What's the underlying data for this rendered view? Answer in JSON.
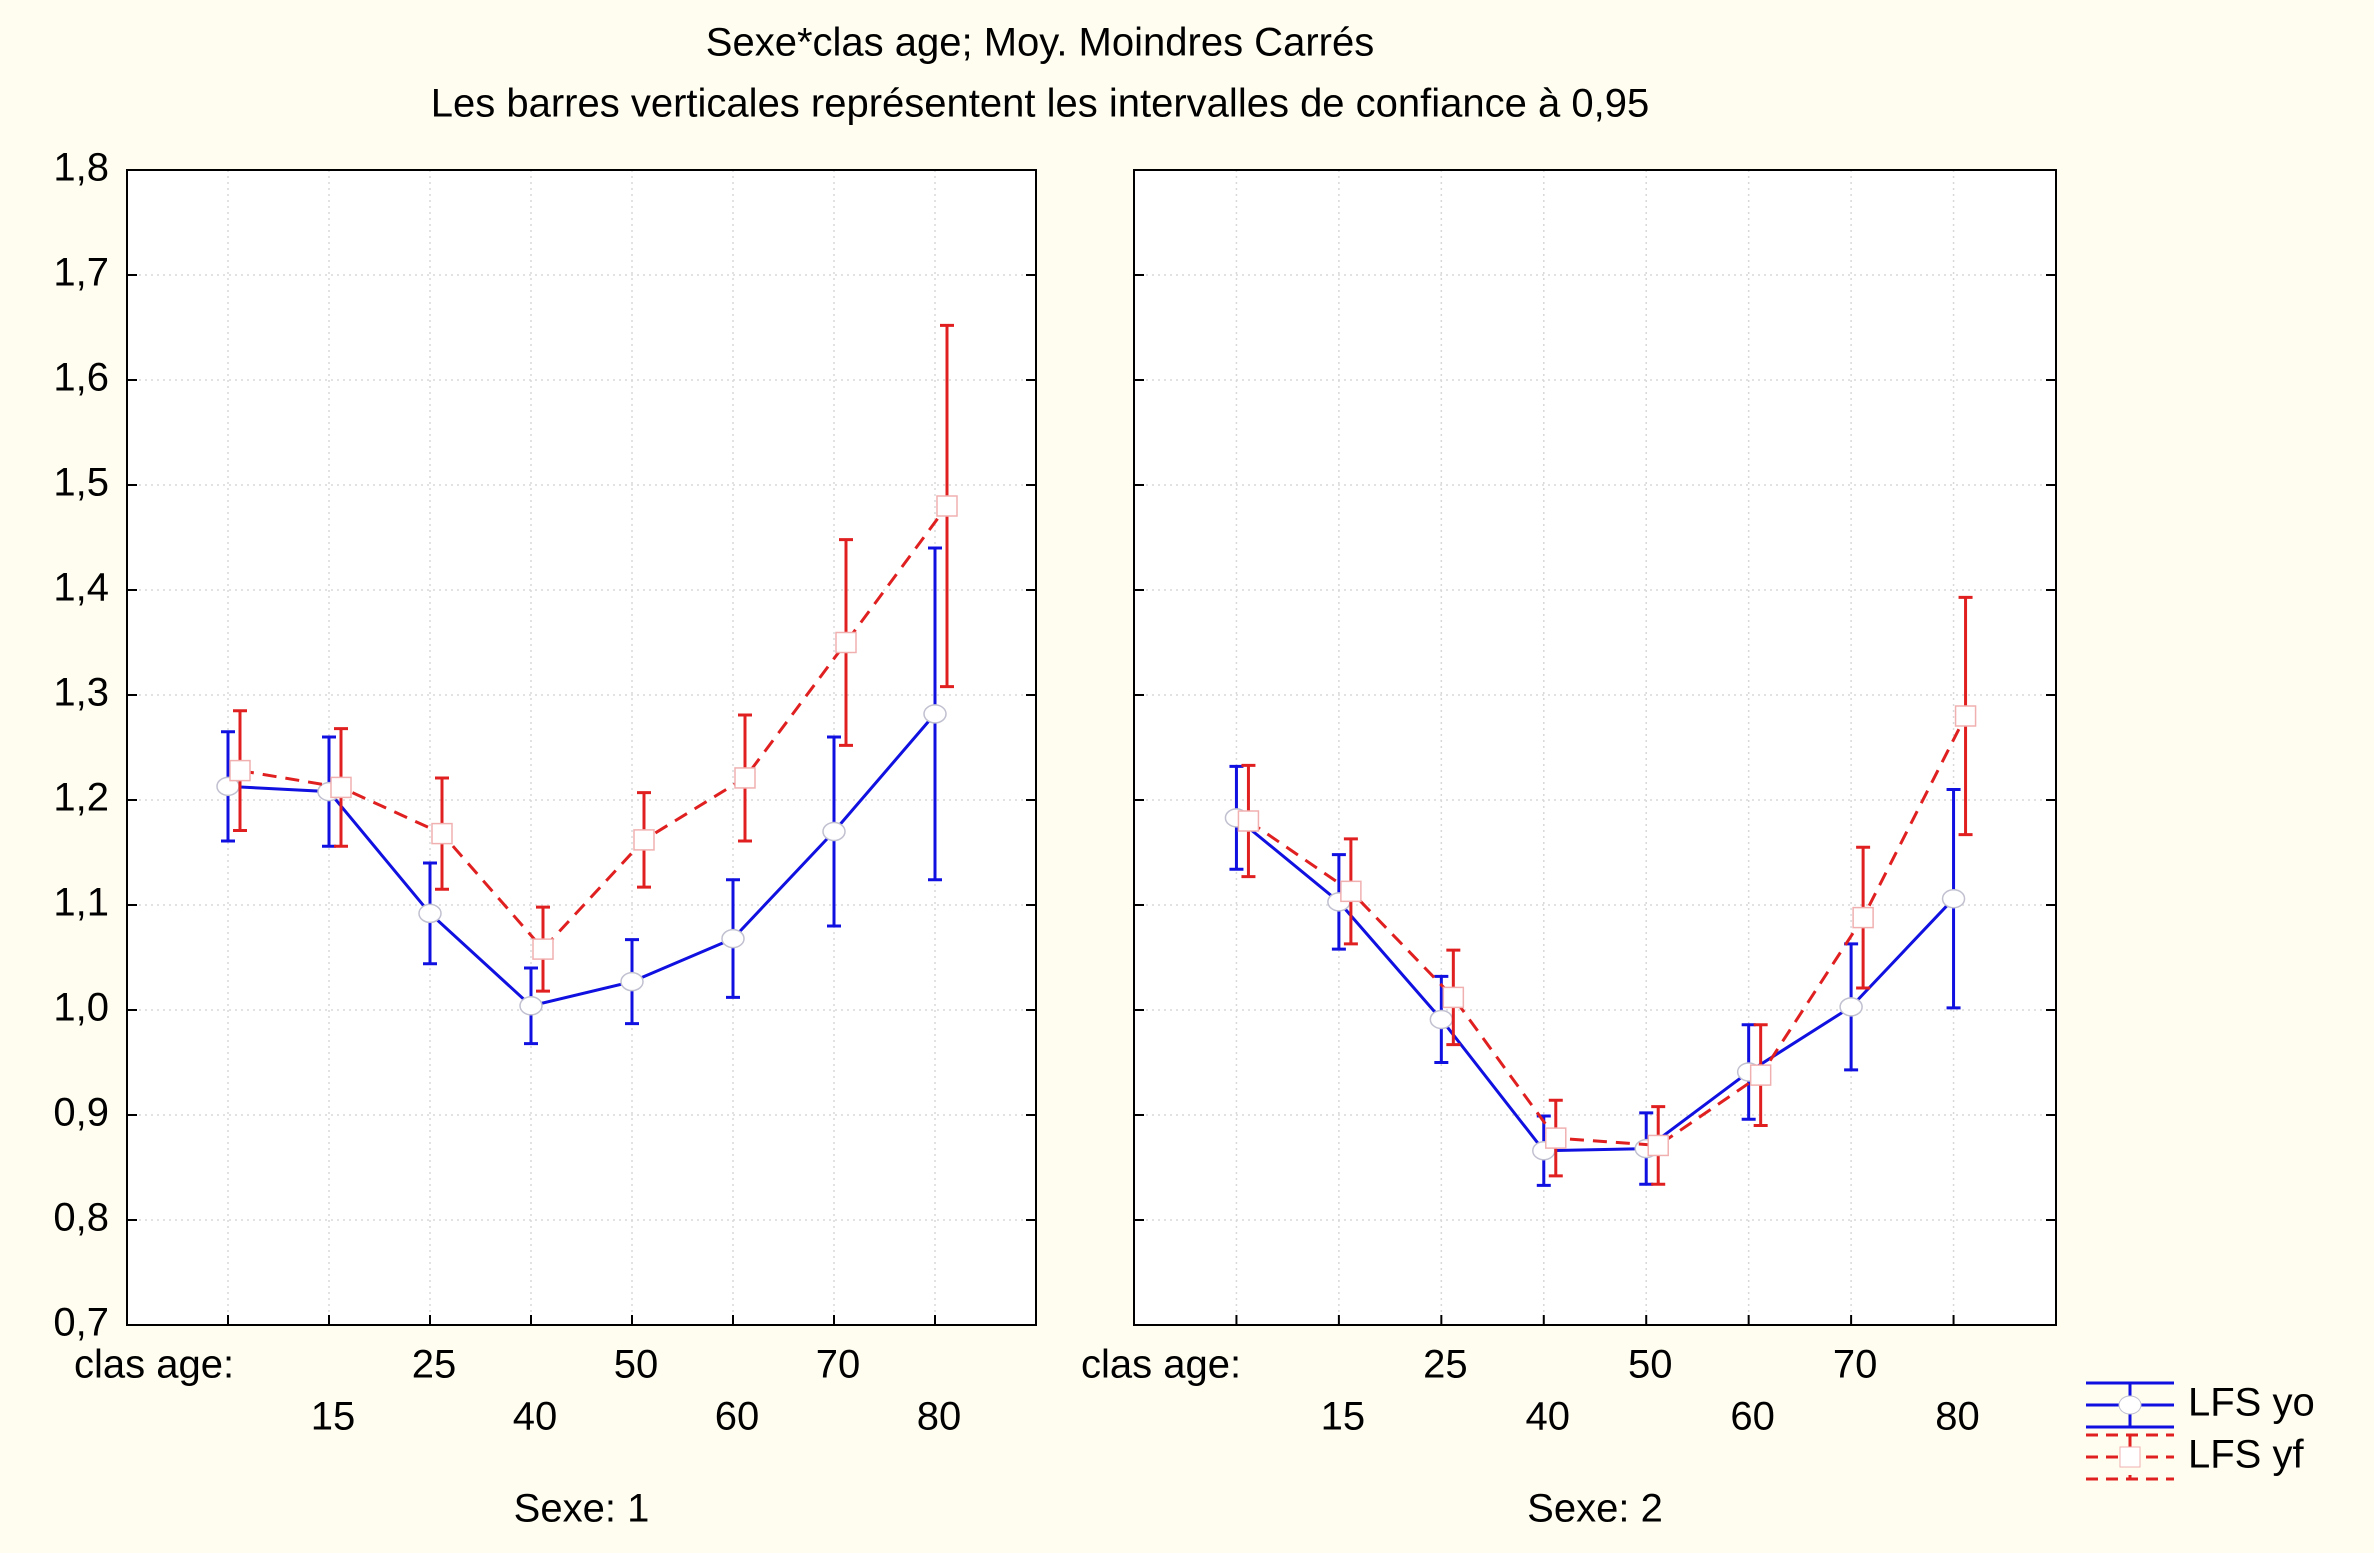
{
  "chart_data": [
    {
      "type": "line",
      "title": "Sexe*clas age; Moy. Moindres Carrés",
      "subtitle": "Les barres verticales représentent les intervalles de confiance à 0,95",
      "xlabel": "clas age:",
      "panel_label": "Sexe: 1",
      "categories": [
        null,
        "15",
        "25",
        "40",
        "50",
        "60",
        "70",
        "80"
      ],
      "series": [
        {
          "color": "#1010e0",
          "marker": "circle",
          "dashed": false,
          "values": [
            1.213,
            1.208,
            1.092,
            1.004,
            1.027,
            1.068,
            1.17,
            1.282
          ],
          "errors": [
            0.052,
            0.052,
            0.048,
            0.036,
            0.04,
            0.056,
            0.09,
            0.158
          ]
        },
        {
          "color": "#e02020",
          "marker": "square",
          "dashed": true,
          "values": [
            1.228,
            1.212,
            1.168,
            1.058,
            1.162,
            1.221,
            1.35,
            1.48
          ],
          "errors": [
            0.057,
            0.056,
            0.053,
            0.04,
            0.045,
            0.06,
            0.098,
            0.172
          ]
        }
      ],
      "ylim": [
        0.7,
        1.8
      ],
      "yticks": [
        {
          "value": 0.7,
          "label": "0,7"
        },
        {
          "value": 0.8,
          "label": "0,8"
        },
        {
          "value": 0.9,
          "label": "0,9"
        },
        {
          "value": 1.0,
          "label": "1,0"
        },
        {
          "value": 1.1,
          "label": "1,1"
        },
        {
          "value": 1.2,
          "label": "1,2"
        },
        {
          "value": 1.3,
          "label": "1,3"
        },
        {
          "value": 1.4,
          "label": "1,4"
        },
        {
          "value": 1.5,
          "label": "1,5"
        },
        {
          "value": 1.6,
          "label": "1,6"
        },
        {
          "value": 1.7,
          "label": "1,7"
        },
        {
          "value": 1.8,
          "label": "1,8"
        }
      ],
      "grid": true
    },
    {
      "type": "line",
      "xlabel": "clas age:",
      "panel_label": "Sexe: 2",
      "categories": [
        null,
        "15",
        "25",
        "40",
        "50",
        "60",
        "70",
        "80"
      ],
      "series": [
        {
          "name": "LFS yo",
          "color": "#1010e0",
          "marker": "circle",
          "dashed": false,
          "values": [
            1.183,
            1.103,
            0.991,
            0.866,
            0.868,
            0.941,
            1.003,
            1.106
          ],
          "errors": [
            0.049,
            0.045,
            0.041,
            0.033,
            0.034,
            0.045,
            0.06,
            0.104
          ]
        },
        {
          "name": "LFS yf",
          "color": "#e02020",
          "marker": "square",
          "dashed": true,
          "values": [
            1.18,
            1.113,
            1.012,
            0.878,
            0.871,
            0.938,
            1.088,
            1.28
          ],
          "errors": [
            0.053,
            0.05,
            0.045,
            0.036,
            0.037,
            0.048,
            0.067,
            0.113
          ]
        }
      ],
      "ylim": [
        0.7,
        1.8
      ],
      "yticks": [
        0.7,
        0.8,
        0.9,
        1.0,
        1.1,
        1.2,
        1.3,
        1.4,
        1.5,
        1.6,
        1.7,
        1.8
      ],
      "grid": true,
      "legend": "right"
    }
  ]
}
